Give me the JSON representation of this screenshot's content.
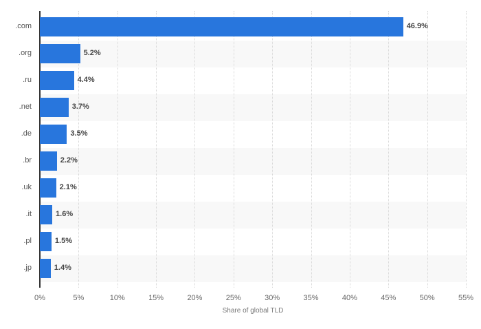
{
  "chart_data": {
    "type": "bar",
    "orientation": "horizontal",
    "title": "",
    "xlabel": "Share of global TLD",
    "ylabel": "",
    "categories": [
      ".com",
      ".org",
      ".ru",
      ".net",
      ".de",
      ".br",
      ".uk",
      ".it",
      ".pl",
      ".jp"
    ],
    "values": [
      46.9,
      5.2,
      4.4,
      3.7,
      3.5,
      2.2,
      2.1,
      1.6,
      1.5,
      1.4
    ],
    "value_labels": [
      "46.9%",
      "5.2%",
      "4.4%",
      "3.7%",
      "3.5%",
      "2.2%",
      "2.1%",
      "1.6%",
      "1.5%",
      "1.4%"
    ],
    "xlim": [
      0,
      55
    ],
    "x_ticks": [
      "0%",
      "5%",
      "10%",
      "15%",
      "20%",
      "25%",
      "30%",
      "35%",
      "40%",
      "45%",
      "50%",
      "55%"
    ],
    "grid": true,
    "legend": null,
    "bar_color": "#2876dd"
  }
}
